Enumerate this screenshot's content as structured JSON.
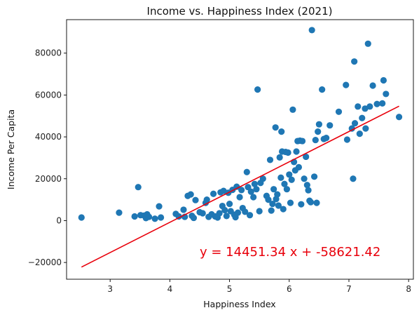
{
  "chart_data": {
    "type": "scatter",
    "title": "Income vs. Happiness Index (2021)",
    "xlabel": "Happiness Index",
    "ylabel": "Income Per Capita",
    "xlim": [
      2.27,
      8.08
    ],
    "ylim": [
      -28000,
      96000
    ],
    "xticks": [
      3,
      4,
      5,
      6,
      7,
      8
    ],
    "yticks": [
      -20000,
      0,
      20000,
      40000,
      60000,
      80000
    ],
    "grid": false,
    "colors": {
      "points": "#1f77b4",
      "regression": "#e8000b",
      "annotation": "#e8000b"
    },
    "regression": {
      "slope": 14451.34,
      "intercept": -58621.42,
      "x_range": [
        2.52,
        7.84
      ]
    },
    "annotation": {
      "text": "y = 14451.34 x + -58621.42",
      "x": 4.5,
      "y": -15000
    },
    "points": [
      [
        2.52,
        1500
      ],
      [
        3.15,
        3800
      ],
      [
        3.41,
        2000
      ],
      [
        3.47,
        16000
      ],
      [
        3.51,
        2600
      ],
      [
        3.57,
        2400
      ],
      [
        3.6,
        1200
      ],
      [
        3.62,
        3000
      ],
      [
        3.65,
        1800
      ],
      [
        3.75,
        900
      ],
      [
        3.82,
        6800
      ],
      [
        3.85,
        1500
      ],
      [
        4.1,
        3200
      ],
      [
        4.15,
        2000
      ],
      [
        4.23,
        5200
      ],
      [
        4.25,
        1800
      ],
      [
        4.3,
        11800
      ],
      [
        4.35,
        12500
      ],
      [
        4.37,
        2300
      ],
      [
        4.4,
        1300
      ],
      [
        4.43,
        9800
      ],
      [
        4.5,
        4000
      ],
      [
        4.55,
        3500
      ],
      [
        4.6,
        8500
      ],
      [
        4.62,
        10000
      ],
      [
        4.65,
        1800
      ],
      [
        4.7,
        3000
      ],
      [
        4.73,
        12800
      ],
      [
        4.76,
        2000
      ],
      [
        4.8,
        1500
      ],
      [
        4.83,
        3500
      ],
      [
        4.85,
        13500
      ],
      [
        4.88,
        7000
      ],
      [
        4.9,
        14200
      ],
      [
        4.92,
        5000
      ],
      [
        4.95,
        2200
      ],
      [
        4.98,
        13300
      ],
      [
        5.0,
        8000
      ],
      [
        5.02,
        4500
      ],
      [
        5.05,
        14700
      ],
      [
        5.08,
        2800
      ],
      [
        5.1,
        1600
      ],
      [
        5.12,
        16200
      ],
      [
        5.14,
        3800
      ],
      [
        5.17,
        11200
      ],
      [
        5.2,
        14600
      ],
      [
        5.22,
        6000
      ],
      [
        5.26,
        4200
      ],
      [
        5.29,
        23200
      ],
      [
        5.31,
        16000
      ],
      [
        5.34,
        2600
      ],
      [
        5.36,
        13800
      ],
      [
        5.4,
        11200
      ],
      [
        5.42,
        17500
      ],
      [
        5.45,
        15000
      ],
      [
        5.47,
        62600
      ],
      [
        5.5,
        4500
      ],
      [
        5.52,
        18000
      ],
      [
        5.56,
        20000
      ],
      [
        5.62,
        11800
      ],
      [
        5.65,
        10000
      ],
      [
        5.68,
        29000
      ],
      [
        5.7,
        4800
      ],
      [
        5.72,
        8000
      ],
      [
        5.74,
        15000
      ],
      [
        5.77,
        44500
      ],
      [
        5.78,
        10300
      ],
      [
        5.8,
        12500
      ],
      [
        5.82,
        7200
      ],
      [
        5.84,
        30200
      ],
      [
        5.86,
        20500
      ],
      [
        5.87,
        42500
      ],
      [
        5.88,
        33000
      ],
      [
        5.9,
        5500
      ],
      [
        5.92,
        17500
      ],
      [
        5.94,
        32800
      ],
      [
        5.96,
        15000
      ],
      [
        5.98,
        32500
      ],
      [
        6.0,
        22000
      ],
      [
        6.02,
        8500
      ],
      [
        6.04,
        19500
      ],
      [
        6.06,
        53000
      ],
      [
        6.08,
        28000
      ],
      [
        6.1,
        24000
      ],
      [
        6.12,
        33000
      ],
      [
        6.14,
        38000
      ],
      [
        6.16,
        25500
      ],
      [
        6.18,
        38200
      ],
      [
        6.2,
        7800
      ],
      [
        6.22,
        38000
      ],
      [
        6.25,
        20000
      ],
      [
        6.28,
        30500
      ],
      [
        6.3,
        17000
      ],
      [
        6.32,
        14500
      ],
      [
        6.34,
        9500
      ],
      [
        6.36,
        8800
      ],
      [
        6.38,
        91000
      ],
      [
        6.42,
        21000
      ],
      [
        6.44,
        38500
      ],
      [
        6.46,
        8500
      ],
      [
        6.48,
        42500
      ],
      [
        6.5,
        46000
      ],
      [
        6.55,
        62600
      ],
      [
        6.58,
        39000
      ],
      [
        6.62,
        39500
      ],
      [
        6.68,
        45500
      ],
      [
        6.83,
        52000
      ],
      [
        6.95,
        64800
      ],
      [
        6.97,
        38700
      ],
      [
        7.05,
        44000
      ],
      [
        7.07,
        20000
      ],
      [
        7.09,
        76000
      ],
      [
        7.1,
        46500
      ],
      [
        7.15,
        54500
      ],
      [
        7.18,
        41500
      ],
      [
        7.22,
        49000
      ],
      [
        7.27,
        53500
      ],
      [
        7.28,
        44000
      ],
      [
        7.32,
        84500
      ],
      [
        7.35,
        54500
      ],
      [
        7.4,
        64500
      ],
      [
        7.47,
        55700
      ],
      [
        7.56,
        56000
      ],
      [
        7.58,
        67000
      ],
      [
        7.62,
        60500
      ],
      [
        7.84,
        49500
      ]
    ]
  }
}
